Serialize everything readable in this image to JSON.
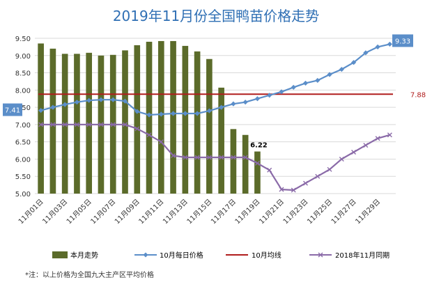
{
  "chart_data": {
    "type": "bar",
    "title": "2019年11月份全国鸭苗价格走势",
    "ylim": [
      5.0,
      9.5
    ],
    "ytick_labels": [
      "9.50",
      "9.00",
      "8.50",
      "8.00",
      "7.50",
      "7.00",
      "6.50",
      "6.00",
      "5.50",
      "5.00"
    ],
    "xtick_labels": [
      "11月01日",
      "11月03日",
      "11月05日",
      "11月07日",
      "11月09日",
      "11月11日",
      "11月13日",
      "11月15日",
      "11月17日",
      "11月19日",
      "11月21日",
      "11月23日",
      "11月25日",
      "11月27日",
      "11月29日"
    ],
    "days": [
      1,
      2,
      3,
      4,
      5,
      6,
      7,
      8,
      9,
      10,
      11,
      12,
      13,
      14,
      15,
      16,
      17,
      18,
      19,
      20,
      21,
      22,
      23,
      24,
      25,
      26,
      27,
      28,
      29,
      30
    ],
    "series": [
      {
        "name": "本月走势",
        "kind": "bar",
        "color": "#5b6b2a",
        "values": [
          9.35,
          9.2,
          9.05,
          9.05,
          9.08,
          9.0,
          9.02,
          9.15,
          9.3,
          9.4,
          9.42,
          9.42,
          9.28,
          9.12,
          8.9,
          8.07,
          6.87,
          6.7,
          6.22
        ]
      },
      {
        "name": "10月每日价格",
        "kind": "line",
        "color": "#5b8ec9",
        "values": [
          7.41,
          7.5,
          7.58,
          7.65,
          7.7,
          7.72,
          7.72,
          7.68,
          7.38,
          7.28,
          7.3,
          7.32,
          7.32,
          7.32,
          7.4,
          7.5,
          7.6,
          7.65,
          7.75,
          7.85,
          7.95,
          8.08,
          8.2,
          8.28,
          8.45,
          8.6,
          8.8,
          9.08,
          9.25,
          9.33
        ]
      },
      {
        "name": "10月均线",
        "kind": "hline",
        "color": "#b01c1c",
        "value": 7.88
      },
      {
        "name": "2018年11月同期",
        "kind": "line",
        "color": "#8a6aa8",
        "values": [
          7.0,
          7.0,
          7.0,
          7.0,
          7.0,
          7.0,
          7.0,
          7.0,
          6.88,
          6.7,
          6.5,
          6.1,
          6.05,
          6.05,
          6.05,
          6.05,
          6.05,
          6.05,
          5.88,
          5.68,
          5.12,
          5.1,
          5.3,
          5.5,
          5.7,
          6.0,
          6.2,
          6.4,
          6.6,
          6.7
        ]
      }
    ],
    "annotations": {
      "start_label": "7.41",
      "end_label": "9.33",
      "avg_label": "7.88",
      "last_bar_label": "6.22"
    }
  },
  "note": "*注：以上价格为全国九大主产区平均价格",
  "colors": {
    "title": "#2f6fb4",
    "label_box_bg": "#5b8ec9",
    "label_box_text": "#ffffff",
    "avg_label_text": "#b01c1c",
    "grid": "#d9d9d9",
    "axis_text": "#333333"
  }
}
